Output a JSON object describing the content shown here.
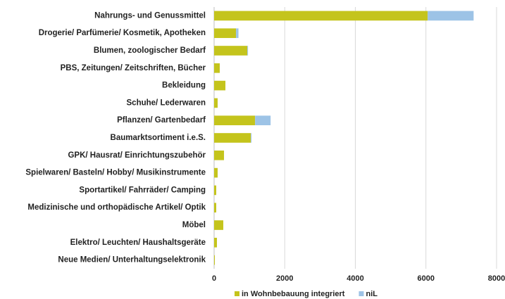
{
  "chart_data": {
    "type": "bar",
    "orientation": "horizontal",
    "stacked": true,
    "categories": [
      "Nahrungs- und Genussmittel",
      "Drogerie/ Parfümerie/ Kosmetik, Apotheken",
      "Blumen, zoologischer Bedarf",
      "PBS, Zeitungen/ Zeitschriften, Bücher",
      "Bekleidung",
      "Schuhe/ Lederwaren",
      "Pflanzen/ Gartenbedarf",
      "Baumarktsortiment i.e.S.",
      "GPK/ Hausrat/ Einrichtungszubehör",
      "Spielwaren/ Basteln/ Hobby/ Musikinstrumente",
      "Sportartikel/ Fahrräder/ Camping",
      "Medizinische und orthopädische Artikel/ Optik",
      "Möbel",
      "Elektro/ Leuchten/ Haushaltsgeräte",
      "Neue Medien/ Unterhaltungselektronik"
    ],
    "series": [
      {
        "name": "in Wohnbebauung integriert",
        "color": "#c4c41c",
        "values": [
          6050,
          620,
          940,
          160,
          320,
          100,
          1160,
          1040,
          280,
          100,
          60,
          60,
          260,
          80,
          20
        ]
      },
      {
        "name": "niL",
        "color": "#9dc3e6",
        "values": [
          1300,
          70,
          20,
          0,
          0,
          0,
          440,
          20,
          0,
          0,
          0,
          0,
          0,
          0,
          0
        ]
      }
    ],
    "xlim": [
      0,
      8000
    ],
    "xticks": [
      0,
      2000,
      4000,
      6000,
      8000
    ],
    "grid": true,
    "legend": "bottom"
  }
}
